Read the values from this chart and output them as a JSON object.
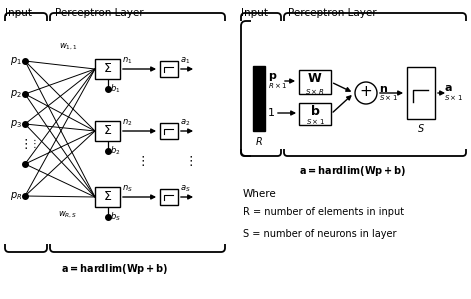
{
  "bg_color": "#ffffff",
  "line_color": "#000000",
  "title_left_input": "Input",
  "title_left_layer": "Perceptron Layer",
  "title_right_input": "Input",
  "title_right_layer": "Perceptron Layer",
  "eq_left": "a = hardlim(Wp + b)",
  "eq_right": "a = hardlim(Wp + b)",
  "where_text": "Where",
  "R_def": "R = number of elements in input",
  "S_def": "S = number of neurons in layer"
}
